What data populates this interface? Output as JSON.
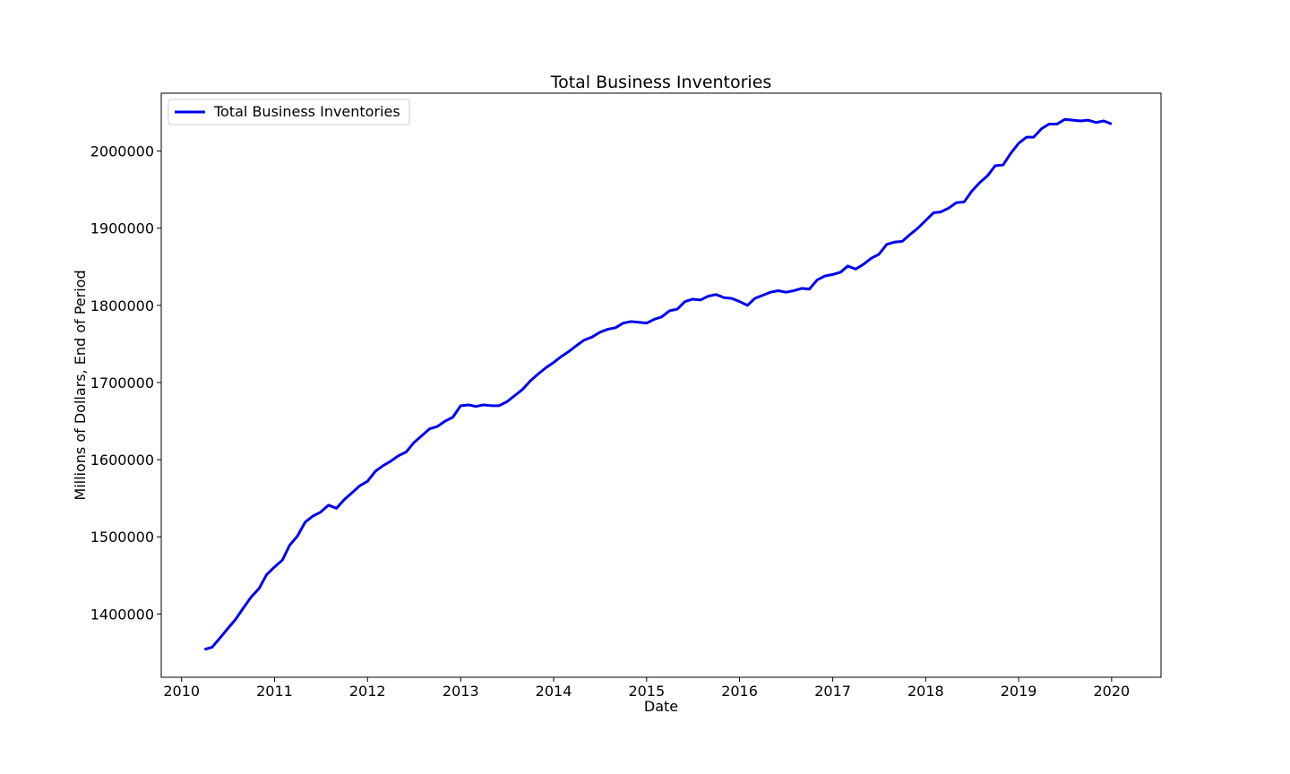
{
  "chart_data": {
    "type": "line",
    "title": "Total Business Inventories",
    "xlabel": "Date",
    "ylabel": "Millions of Dollars, End of Period",
    "xlim": [
      "2009-10-13",
      "2020-07-13"
    ],
    "ylim": [
      1318000,
      2075000
    ],
    "x_ticks": [
      "2010",
      "2011",
      "2012",
      "2013",
      "2014",
      "2015",
      "2016",
      "2017",
      "2018",
      "2019",
      "2020"
    ],
    "y_ticks": [
      1400000,
      1500000,
      1600000,
      1700000,
      1800000,
      1900000,
      2000000
    ],
    "grid": false,
    "legend": {
      "position": "top-left",
      "entries": [
        "Total Business Inventories"
      ]
    },
    "colors": {
      "line": "#0000ee",
      "axes": "#000000",
      "background": "#ffffff"
    },
    "series": [
      {
        "name": "Total Business Inventories",
        "x": [
          "2010-04-01",
          "2010-05-01",
          "2010-06-01",
          "2010-07-01",
          "2010-08-01",
          "2010-09-01",
          "2010-10-01",
          "2010-11-01",
          "2010-12-01",
          "2011-01-01",
          "2011-02-01",
          "2011-03-01",
          "2011-04-01",
          "2011-05-01",
          "2011-06-01",
          "2011-07-01",
          "2011-08-01",
          "2011-09-01",
          "2011-10-01",
          "2011-11-01",
          "2011-12-01",
          "2012-01-01",
          "2012-02-01",
          "2012-03-01",
          "2012-04-01",
          "2012-05-01",
          "2012-06-01",
          "2012-07-01",
          "2012-08-01",
          "2012-09-01",
          "2012-10-01",
          "2012-11-01",
          "2012-12-01",
          "2013-01-01",
          "2013-02-01",
          "2013-03-01",
          "2013-04-01",
          "2013-05-01",
          "2013-06-01",
          "2013-07-01",
          "2013-08-01",
          "2013-09-01",
          "2013-10-01",
          "2013-11-01",
          "2013-12-01",
          "2014-01-01",
          "2014-02-01",
          "2014-03-01",
          "2014-04-01",
          "2014-05-01",
          "2014-06-01",
          "2014-07-01",
          "2014-08-01",
          "2014-09-01",
          "2014-10-01",
          "2014-11-01",
          "2014-12-01",
          "2015-01-01",
          "2015-02-01",
          "2015-03-01",
          "2015-04-01",
          "2015-05-01",
          "2015-06-01",
          "2015-07-01",
          "2015-08-01",
          "2015-09-01",
          "2015-10-01",
          "2015-11-01",
          "2015-12-01",
          "2016-01-01",
          "2016-02-01",
          "2016-03-01",
          "2016-04-01",
          "2016-05-01",
          "2016-06-01",
          "2016-07-01",
          "2016-08-01",
          "2016-09-01",
          "2016-10-01",
          "2016-11-01",
          "2016-12-01",
          "2017-01-01",
          "2017-02-01",
          "2017-03-01",
          "2017-04-01",
          "2017-05-01",
          "2017-06-01",
          "2017-07-01",
          "2017-08-01",
          "2017-09-01",
          "2017-10-01",
          "2017-11-01",
          "2017-12-01",
          "2018-01-01",
          "2018-02-01",
          "2018-03-01",
          "2018-04-01",
          "2018-05-01",
          "2018-06-01",
          "2018-07-01",
          "2018-08-01",
          "2018-09-01",
          "2018-10-01",
          "2018-11-01",
          "2018-12-01",
          "2019-01-01",
          "2019-02-01",
          "2019-03-01",
          "2019-04-01",
          "2019-05-01",
          "2019-06-01",
          "2019-07-01",
          "2019-08-01",
          "2019-09-01",
          "2019-10-01",
          "2019-11-01",
          "2019-12-01",
          "2020-01-01"
        ],
        "values": [
          1354000,
          1357000,
          1369000,
          1381000,
          1393000,
          1408000,
          1422000,
          1433000,
          1451000,
          1461000,
          1470000,
          1489000,
          1501000,
          1519000,
          1527000,
          1532000,
          1541000,
          1537000,
          1548000,
          1557000,
          1566000,
          1572000,
          1585000,
          1592000,
          1598000,
          1605000,
          1610000,
          1622000,
          1631000,
          1640000,
          1643000,
          1650000,
          1655000,
          1670000,
          1671000,
          1669000,
          1671000,
          1670000,
          1670000,
          1675000,
          1683000,
          1691000,
          1702000,
          1711000,
          1719000,
          1726000,
          1734000,
          1740000,
          1748000,
          1755000,
          1759000,
          1765000,
          1769000,
          1771000,
          1777000,
          1779000,
          1778000,
          1777000,
          1782000,
          1785000,
          1793000,
          1795000,
          1805000,
          1808000,
          1807000,
          1812000,
          1814000,
          1810000,
          1809000,
          1805000,
          1800000,
          1809000,
          1813000,
          1817000,
          1819000,
          1817000,
          1819000,
          1822000,
          1821000,
          1833000,
          1838000,
          1840000,
          1843000,
          1851000,
          1847000,
          1853000,
          1861000,
          1866000,
          1879000,
          1882000,
          1883000,
          1892000,
          1900000,
          1910000,
          1920000,
          1921000,
          1926000,
          1933000,
          1934000,
          1948000,
          1959000,
          1968000,
          1981000,
          1982000,
          1997000,
          2010000,
          2018000,
          2018000,
          2029000,
          2035000,
          2035000,
          2041000,
          2040000,
          2039000,
          2040000,
          2037000,
          2039000,
          2035000
        ]
      }
    ]
  }
}
